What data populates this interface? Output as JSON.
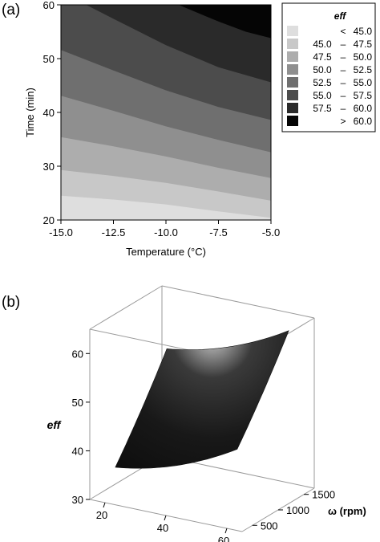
{
  "panels": [
    {
      "label": "(a)"
    },
    {
      "label": "(b)"
    }
  ],
  "chart_data": [
    {
      "type": "contour",
      "title": "",
      "xlabel": "Temperature (°C)",
      "ylabel": "Time (min)",
      "xlim": [
        -15,
        -5
      ],
      "ylim": [
        20,
        60
      ],
      "xticks": [
        "-15.0",
        "-12.5",
        "-10.0",
        "-7.5",
        "-5.0"
      ],
      "yticks": [
        "20",
        "30",
        "40",
        "50",
        "60"
      ],
      "legend": {
        "title": "eff",
        "placement": "right",
        "entries": [
          {
            "low": "",
            "op": "<",
            "high": "45.0",
            "color": "#dedede"
          },
          {
            "low": "45.0",
            "op": "–",
            "high": "47.5",
            "color": "#c8c8c8"
          },
          {
            "low": "47.5",
            "op": "–",
            "high": "50.0",
            "color": "#adadad"
          },
          {
            "low": "50.0",
            "op": "–",
            "high": "52.5",
            "color": "#8f8f8f"
          },
          {
            "low": "52.5",
            "op": "–",
            "high": "55.0",
            "color": "#6f6f6f"
          },
          {
            "low": "55.0",
            "op": "–",
            "high": "57.5",
            "color": "#4c4c4c"
          },
          {
            "low": "57.5",
            "op": "–",
            "high": "60.0",
            "color": "#2a2a2a"
          },
          {
            "low": "",
            "op": ">",
            "high": "60.0",
            "color": "#050505"
          }
        ]
      },
      "contours": [
        {
          "level": 45.0,
          "points": [
            [
              -15,
              24.5
            ],
            [
              -12.5,
              23.8
            ],
            [
              -10,
              22.9
            ],
            [
              -7.5,
              21.6
            ],
            [
              -5,
              20.4
            ]
          ]
        },
        {
          "level": 47.5,
          "points": [
            [
              -15,
              29.3
            ],
            [
              -12.5,
              28.2
            ],
            [
              -10,
              26.9
            ],
            [
              -7.5,
              25.3
            ],
            [
              -5,
              23.6
            ]
          ]
        },
        {
          "level": 50.0,
          "points": [
            [
              -15,
              35.4
            ],
            [
              -12.5,
              33.7
            ],
            [
              -10,
              31.8
            ],
            [
              -7.5,
              29.7
            ],
            [
              -5,
              27.8
            ]
          ]
        },
        {
          "level": 52.5,
          "points": [
            [
              -15,
              43.1
            ],
            [
              -12.5,
              40.3
            ],
            [
              -10,
              37.4
            ],
            [
              -7.5,
              34.9
            ],
            [
              -5,
              32.6
            ]
          ]
        },
        {
          "level": 55.0,
          "points": [
            [
              -15,
              51.6
            ],
            [
              -12.5,
              47.8
            ],
            [
              -10,
              44.1
            ],
            [
              -7.5,
              41.0
            ],
            [
              -5,
              38.6
            ]
          ]
        },
        {
          "level": 57.5,
          "points": [
            [
              -13.8,
              60
            ],
            [
              -12.5,
              57.4
            ],
            [
              -10,
              52.5
            ],
            [
              -7.5,
              48.4
            ],
            [
              -5,
              45.6
            ]
          ]
        },
        {
          "level": 60.0,
          "points": [
            [
              -9.4,
              60
            ],
            [
              -7.5,
              56.9
            ],
            [
              -6.2,
              55.0
            ],
            [
              -5,
              53.8
            ]
          ]
        }
      ]
    },
    {
      "type": "surface",
      "title": "",
      "xlabel": "Time (min)",
      "ylabel": "ω (rpm)",
      "zlabel": "eff",
      "xlim": [
        15,
        65
      ],
      "ylim": [
        300,
        1700
      ],
      "zlim": [
        30,
        65
      ],
      "xticks": [
        "20",
        "40",
        "60"
      ],
      "yticks": [
        "500",
        "1000",
        "1500"
      ],
      "zticks": [
        "30",
        "40",
        "50",
        "60"
      ],
      "surface_points": [
        {
          "time": 20,
          "rpm": 500,
          "eff": 36
        },
        {
          "time": 60,
          "rpm": 500,
          "eff": 45
        },
        {
          "time": 20,
          "rpm": 1500,
          "eff": 54
        },
        {
          "time": 60,
          "rpm": 1500,
          "eff": 63
        },
        {
          "time": 40,
          "rpm": 1200,
          "eff": 61
        }
      ]
    }
  ]
}
